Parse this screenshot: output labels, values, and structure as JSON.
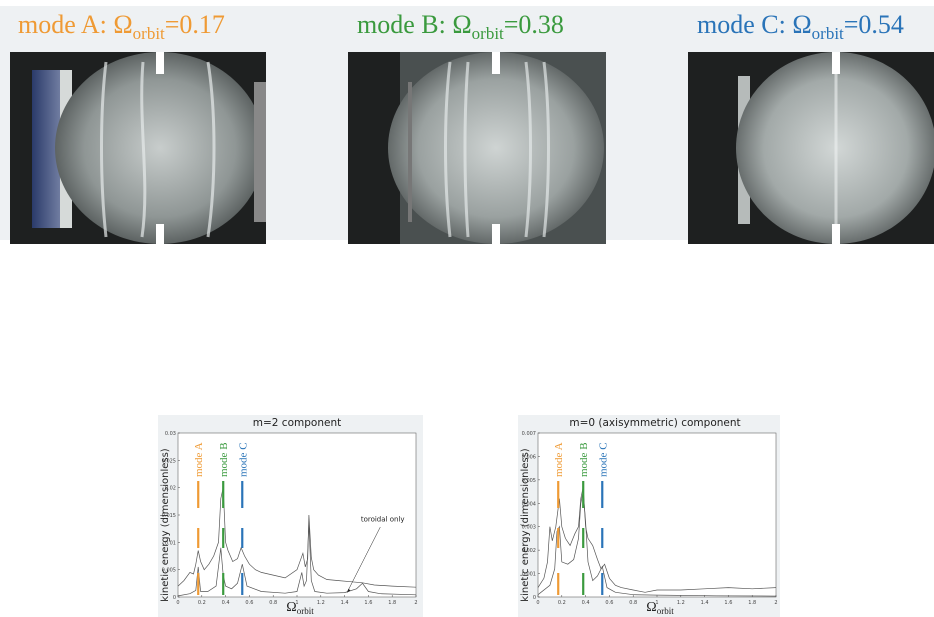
{
  "colors": {
    "mode_a": "#ef9a34",
    "mode_b": "#3a9a3e",
    "mode_c": "#2a74b8",
    "curve": "#555555",
    "panel_bg": "#eef1f3"
  },
  "modes": [
    {
      "prefix": "mode A: Ω",
      "sub": "orbit",
      "suffix": "=0.17"
    },
    {
      "prefix": "mode B: Ω",
      "sub": "orbit",
      "suffix": "=0.38"
    },
    {
      "prefix": "mode C: Ω",
      "sub": "orbit",
      "suffix": "=0.54"
    }
  ],
  "photos": [
    {
      "subject": "mode-a-experiment-photo"
    },
    {
      "subject": "mode-b-experiment-photo"
    },
    {
      "subject": "mode-c-experiment-photo"
    }
  ],
  "chart_data": [
    {
      "type": "line",
      "title": "m=2 component",
      "ylabel": "kinetic energy (dimensionless)",
      "xlabel_main": "Ω",
      "xlabel_sub": "orbit",
      "xlim": [
        0,
        2
      ],
      "ylim": [
        0,
        0.03
      ],
      "xticks": [
        "0",
        "0.2",
        "0.4",
        "0.6",
        "0.8",
        "1",
        "1.2",
        "1.4",
        "1.6",
        "1.8",
        "2"
      ],
      "yticks": [
        "0",
        "0.005",
        "0.01",
        "0.015",
        "0.02",
        "0.025",
        "0.03"
      ],
      "markers": [
        {
          "label": "mode A",
          "x": 0.17,
          "color": "#ef9a34"
        },
        {
          "label": "mode B",
          "x": 0.38,
          "color": "#3a9a3e"
        },
        {
          "label": "mode C",
          "x": 0.54,
          "color": "#2a74b8"
        }
      ],
      "annotation": "toroidal only",
      "series": [
        {
          "x": [
            0,
            0.05,
            0.1,
            0.13,
            0.15,
            0.17,
            0.19,
            0.22,
            0.26,
            0.3,
            0.34,
            0.36,
            0.38,
            0.4,
            0.42,
            0.46,
            0.5,
            0.53,
            0.56,
            0.6,
            0.65,
            0.7,
            0.8,
            0.9,
            1.0,
            1.05,
            1.07,
            1.09,
            1.1,
            1.12,
            1.14,
            1.18,
            1.25,
            1.35,
            1.45,
            1.55,
            1.65,
            1.8,
            2.0
          ],
          "values": [
            0.002,
            0.003,
            0.0045,
            0.0042,
            0.006,
            0.0085,
            0.0065,
            0.005,
            0.006,
            0.0075,
            0.01,
            0.018,
            0.02,
            0.01,
            0.0085,
            0.0065,
            0.007,
            0.009,
            0.0075,
            0.006,
            0.005,
            0.0045,
            0.004,
            0.0035,
            0.005,
            0.008,
            0.0055,
            0.007,
            0.015,
            0.0072,
            0.005,
            0.004,
            0.0032,
            0.003,
            0.0028,
            0.0026,
            0.0022,
            0.002,
            0.0018
          ]
        },
        {
          "x": [
            0,
            0.1,
            0.15,
            0.17,
            0.19,
            0.25,
            0.32,
            0.36,
            0.38,
            0.4,
            0.45,
            0.5,
            0.54,
            0.58,
            0.7,
            0.9,
            1.0,
            1.04,
            1.06,
            1.08,
            1.1,
            1.12,
            1.15,
            1.25,
            1.4,
            1.5,
            1.55,
            1.6,
            1.7,
            2.0
          ],
          "values": [
            0.0002,
            0.0006,
            0.0012,
            0.0055,
            0.001,
            0.001,
            0.002,
            0.009,
            0.004,
            0.002,
            0.0015,
            0.0025,
            0.006,
            0.002,
            0.001,
            0.0007,
            0.001,
            0.0045,
            0.002,
            0.003,
            0.0135,
            0.003,
            0.001,
            0.0007,
            0.0008,
            0.0015,
            0.0025,
            0.001,
            0.0006,
            0.0004
          ]
        }
      ]
    },
    {
      "type": "line",
      "title": "m=0 (axisymmetric) component",
      "ylabel": "kinetic energy (dimensionless)",
      "xlabel_main": "Ω",
      "xlabel_sub": "orbit",
      "xlim": [
        0,
        2
      ],
      "ylim": [
        0,
        0.007
      ],
      "xticks": [
        "0",
        "0.2",
        "0.4",
        "0.6",
        "0.8",
        "1",
        "1.2",
        "1.4",
        "1.6",
        "1.8",
        "2"
      ],
      "yticks": [
        "0",
        "0.001",
        "0.002",
        "0.003",
        "0.004",
        "0.005",
        "0.006",
        "0.007"
      ],
      "markers": [
        {
          "label": "mode A",
          "x": 0.17,
          "color": "#ef9a34"
        },
        {
          "label": "mode B",
          "x": 0.38,
          "color": "#3a9a3e"
        },
        {
          "label": "mode C",
          "x": 0.54,
          "color": "#2a74b8"
        }
      ],
      "series": [
        {
          "x": [
            0,
            0.05,
            0.08,
            0.1,
            0.12,
            0.15,
            0.18,
            0.2,
            0.23,
            0.27,
            0.31,
            0.34,
            0.36,
            0.38,
            0.4,
            0.42,
            0.46,
            0.5,
            0.53,
            0.56,
            0.6,
            0.65,
            0.7,
            0.8,
            0.9,
            1.0,
            1.2,
            1.4,
            1.6,
            1.8,
            2.0
          ],
          "values": [
            0.0004,
            0.0008,
            0.0015,
            0.003,
            0.0024,
            0.003,
            0.0042,
            0.003,
            0.0025,
            0.0022,
            0.0027,
            0.003,
            0.0042,
            0.0047,
            0.003,
            0.0025,
            0.0022,
            0.0016,
            0.0012,
            0.0014,
            0.0008,
            0.0005,
            0.0004,
            0.0003,
            0.0002,
            0.0003,
            0.0003,
            0.00035,
            0.0004,
            0.00035,
            0.0004
          ]
        },
        {
          "x": [
            0,
            0.1,
            0.14,
            0.16,
            0.18,
            0.2,
            0.25,
            0.3,
            0.34,
            0.36,
            0.38,
            0.4,
            0.42,
            0.46,
            0.5,
            0.54,
            0.58,
            0.65,
            0.8,
            1.0,
            1.5,
            2.0
          ],
          "values": [
            0.0001,
            0.0005,
            0.0012,
            0.0028,
            0.003,
            0.0015,
            0.0014,
            0.0016,
            0.0025,
            0.004,
            0.0045,
            0.0032,
            0.0015,
            0.0007,
            0.0009,
            0.0013,
            0.0004,
            0.0002,
            0.0001,
            8e-05,
            5e-05,
            4e-05
          ]
        }
      ]
    }
  ]
}
